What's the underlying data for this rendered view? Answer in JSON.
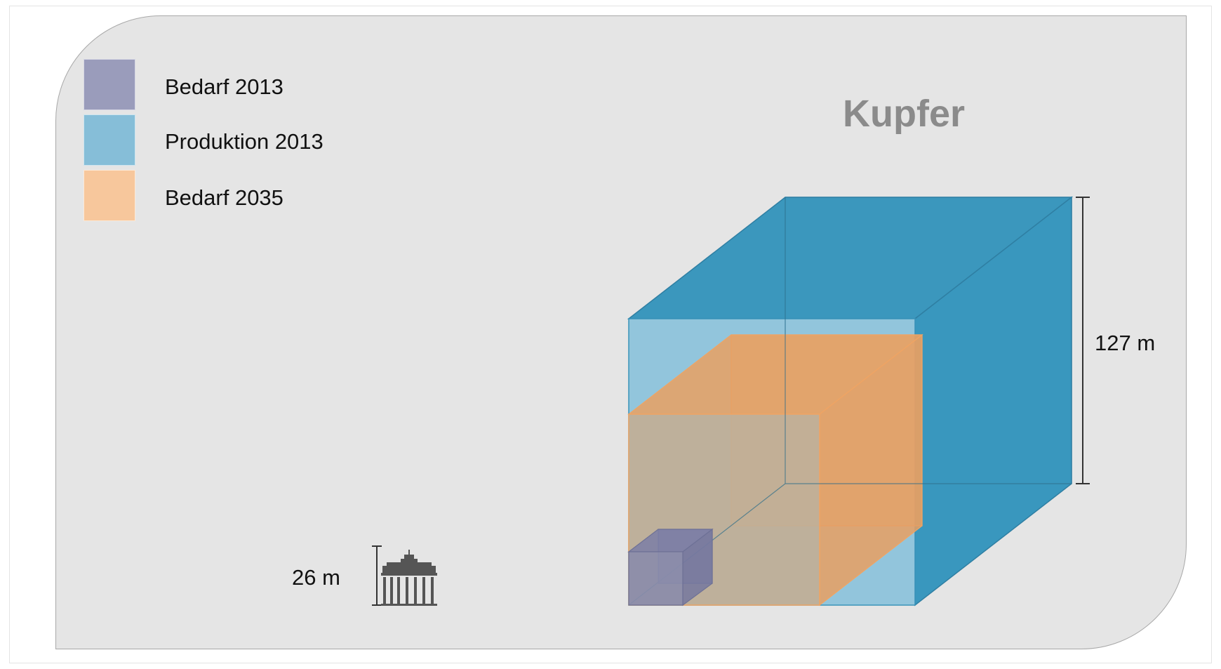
{
  "title": "Kupfer",
  "legend": [
    {
      "label": "Bedarf 2013",
      "color": "#9a9cbb"
    },
    {
      "label": "Produktion 2013",
      "color": "#86bed8"
    },
    {
      "label": "Bedarf 2035",
      "color": "#f7c79c"
    }
  ],
  "dimensions": {
    "large_cube_height": "127 m",
    "reference_height": "26 m"
  },
  "colors": {
    "panel_background": "#e5e5e5",
    "production_cube": "#3a96bc",
    "demand_2035_cube": "#f0a463",
    "demand_2013_cube": "#8285a8",
    "title": "#8b8b8b"
  },
  "reference_icon": "brandenburg-gate-icon"
}
